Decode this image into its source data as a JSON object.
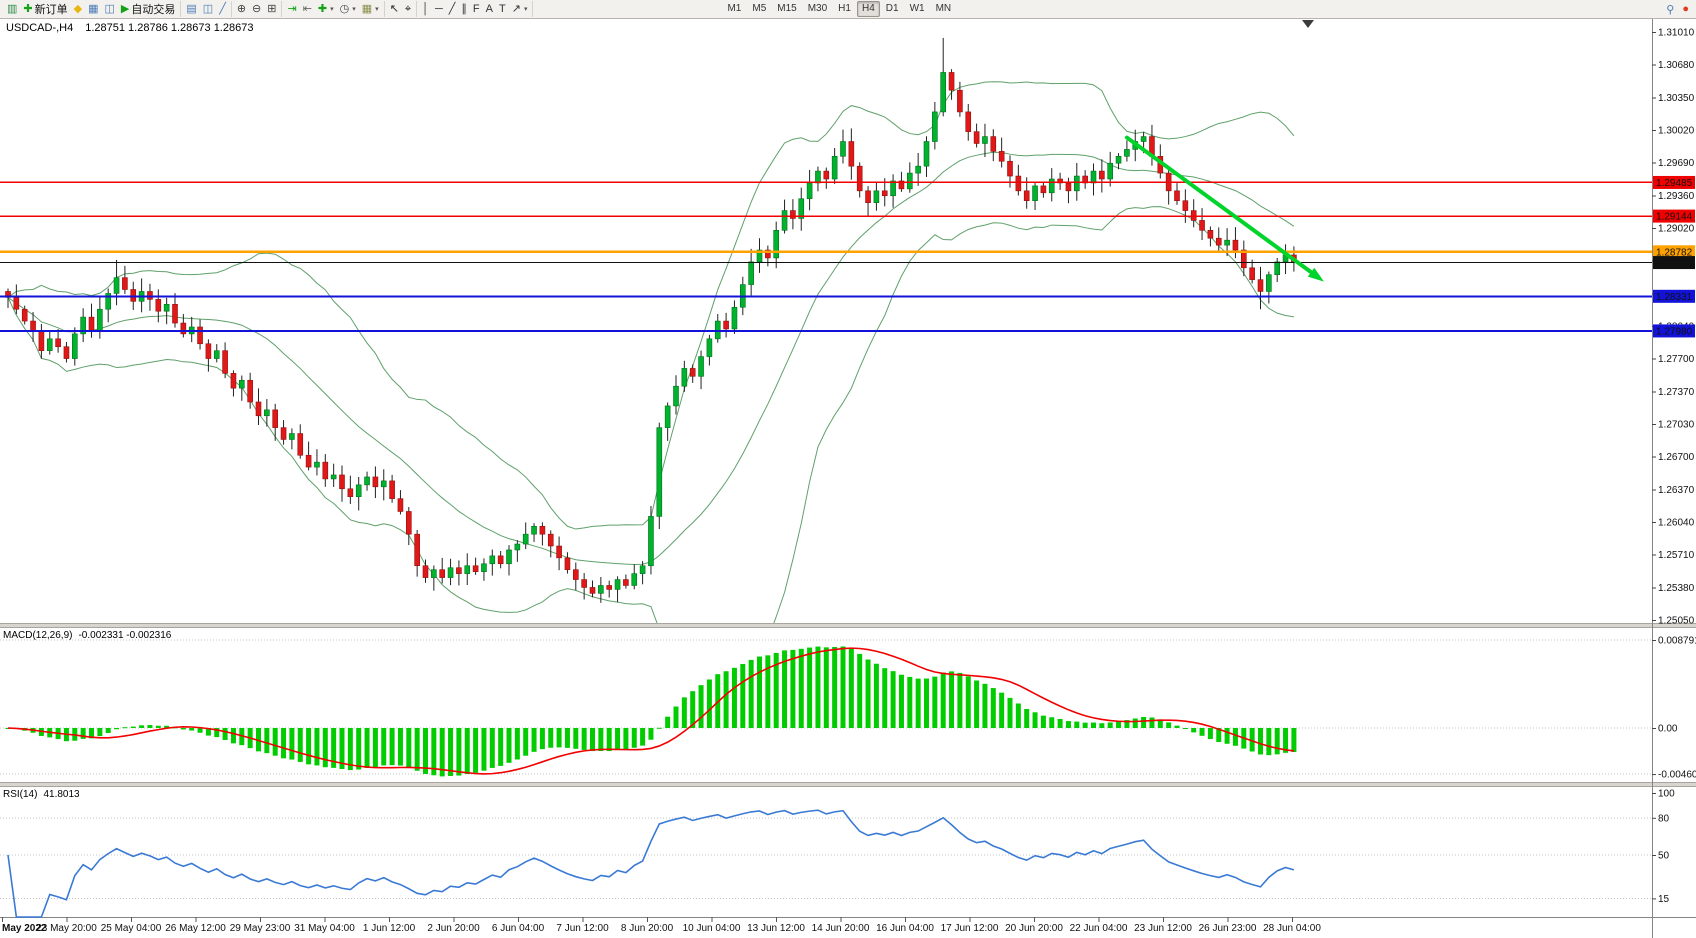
{
  "toolbar": {
    "groups": [
      {
        "name": "file-trade-group",
        "items": [
          {
            "name": "new-chart-icon",
            "glyph": "▥",
            "color": "#2e8b4a"
          },
          {
            "name": "new-order-button",
            "icon_name": "new-order-icon",
            "icon_glyph": "✚",
            "icon_color": "#16a316",
            "label": "新订单"
          },
          {
            "name": "metaeditor-icon",
            "glyph": "◆",
            "color": "#e8b60e"
          },
          {
            "name": "market-watch-icon",
            "glyph": "▦",
            "color": "#4a7ab5"
          },
          {
            "name": "navigator-icon",
            "glyph": "◫",
            "color": "#4a7ab5"
          },
          {
            "name": "auto-trading-button",
            "icon_name": "auto-trading-icon",
            "icon_glyph": "▶",
            "icon_color": "#12a312",
            "label": "自动交易"
          }
        ]
      },
      {
        "name": "chart-type-group",
        "items": [
          {
            "name": "bars-chart-icon",
            "glyph": "▤",
            "color": "#4a7ab5"
          },
          {
            "name": "candlestick-chart-icon",
            "glyph": "◫",
            "color": "#4a7ab5"
          },
          {
            "name": "line-chart-icon",
            "glyph": "╱",
            "color": "#4a7ab5"
          }
        ]
      },
      {
        "name": "zoom-group",
        "items": [
          {
            "name": "zoom-in-icon",
            "glyph": "⊕",
            "color": "#444444"
          },
          {
            "name": "zoom-out-icon",
            "glyph": "⊖",
            "color": "#444444"
          },
          {
            "name": "tile-windows-icon",
            "glyph": "⊞",
            "color": "#444444"
          }
        ]
      },
      {
        "name": "chart-tools-group",
        "items": [
          {
            "name": "auto-scroll-icon",
            "glyph": "⇥",
            "color": "#12a312"
          },
          {
            "name": "chart-shift-icon",
            "glyph": "⇤",
            "color": "#666666"
          },
          {
            "name": "indicators-icon",
            "glyph": "✚",
            "color": "#12a312",
            "caret": true
          },
          {
            "name": "periods-icon",
            "glyph": "◷",
            "color": "#444444",
            "caret": true
          },
          {
            "name": "templates-icon",
            "glyph": "▦",
            "color": "#8a8f4a",
            "caret": true
          }
        ]
      },
      {
        "name": "cursor-group",
        "items": [
          {
            "name": "cursor-icon",
            "glyph": "↖",
            "color": "#222222"
          },
          {
            "name": "crosshair-icon",
            "glyph": "⌖",
            "color": "#222222"
          }
        ]
      },
      {
        "name": "objects-group",
        "items": [
          {
            "name": "vertical-line-icon",
            "glyph": "│",
            "color": "#333333"
          },
          {
            "name": "horizontal-line-icon",
            "glyph": "─",
            "color": "#333333"
          },
          {
            "name": "trendline-icon",
            "glyph": "╱",
            "color": "#333333"
          },
          {
            "name": "channel-icon",
            "glyph": "∥",
            "color": "#333333"
          },
          {
            "name": "fibonacci-icon",
            "glyph": "F",
            "color": "#333333"
          },
          {
            "name": "text-icon",
            "glyph": "A",
            "color": "#333333"
          },
          {
            "name": "label-icon",
            "glyph": "T",
            "color": "#333333"
          },
          {
            "name": "arrows-icon",
            "glyph": "↗",
            "color": "#333333",
            "caret": true
          }
        ]
      }
    ],
    "timeframes": {
      "buttons": [
        "M1",
        "M5",
        "M15",
        "M30",
        "H1",
        "H4",
        "D1",
        "W1",
        "MN"
      ],
      "active": "H4"
    },
    "right_items": [
      {
        "name": "search-icon",
        "glyph": "⚲",
        "color": "#4a7ab5"
      },
      {
        "name": "alert-icon",
        "glyph": "●",
        "color": "#e03a1e"
      }
    ]
  },
  "chart": {
    "title": {
      "symbol_period": "USDCAD-,H4",
      "ohlc": "1.28751 1.28786 1.28673 1.28673"
    },
    "price_axis": {
      "labels": [
        "1.31010",
        "1.30680",
        "1.30350",
        "1.30020",
        "1.29690",
        "1.29360",
        "1.29020",
        "1.28700",
        "1.28370",
        "1.28040",
        "1.27700",
        "1.27370",
        "1.27030",
        "1.26700",
        "1.26370",
        "1.26040",
        "1.25710",
        "1.25380",
        "1.25050"
      ],
      "range": [
        1.2505,
        1.3101
      ]
    },
    "levels": [
      {
        "value": 1.29485,
        "label": "1.29485",
        "color": "#f00000",
        "weight": 1.5,
        "role": "resistance-line"
      },
      {
        "value": 1.29144,
        "label": "1.29144",
        "color": "#f00000",
        "weight": 1.5,
        "role": "resistance-line"
      },
      {
        "value": 1.28782,
        "label": "1.28782",
        "color": "#ffa200",
        "weight": 2.5,
        "role": "pivot-line"
      },
      {
        "value": 1.28673,
        "label": "1.28673",
        "color": "#111111",
        "weight": 1,
        "role": "current-price-line"
      },
      {
        "value": 1.28331,
        "label": "1.28331",
        "color": "#1212d8",
        "weight": 2,
        "role": "support-line"
      },
      {
        "value": 1.2798,
        "label": "1.27980",
        "color": "#1212d8",
        "weight": 2,
        "role": "support-line"
      }
    ],
    "objects": {
      "trend_arrow": {
        "from_index": 134,
        "from_price": 1.2994,
        "to_index": 157.6,
        "to_price": 1.2848,
        "color": "#00d42a"
      }
    },
    "macd": {
      "label": "MACD(12,26,9)",
      "values": "-0.002331 -0.002316",
      "scale_labels": [
        "0.008791",
        "0.00",
        "-0.004601"
      ]
    },
    "rsi": {
      "label": "RSI(14)",
      "value": "41.8013",
      "scale_labels": [
        "100",
        "80",
        "50",
        "15"
      ],
      "level_lines": [
        80,
        50,
        15
      ]
    },
    "time_axis": {
      "labels": [
        "May 2022",
        "23 May 20:00",
        "25 May 04:00",
        "26 May 12:00",
        "29 May 23:00",
        "31 May 04:00",
        "1 Jun 12:00",
        "2 Jun 20:00",
        "6 Jun 04:00",
        "7 Jun 12:00",
        "8 Jun 20:00",
        "10 Jun 04:00",
        "13 Jun 12:00",
        "14 Jun 20:00",
        "16 Jun 04:00",
        "17 Jun 12:00",
        "20 Jun 20:00",
        "22 Jun 04:00",
        "23 Jun 12:00",
        "26 Jun 23:00",
        "28 Jun 04:00"
      ]
    }
  },
  "chart_data": {
    "type": "candlestick",
    "symbol": "USDCAD-",
    "period": "H4",
    "last_ohlc": {
      "open": 1.28751,
      "high": 1.28786,
      "low": 1.28673,
      "close": 1.28673
    },
    "closes": [
      1.2832,
      1.282,
      1.2808,
      1.2798,
      1.2778,
      1.279,
      1.2782,
      1.277,
      1.2795,
      1.2812,
      1.2798,
      1.282,
      1.2836,
      1.2852,
      1.284,
      1.2828,
      1.2838,
      1.283,
      1.2818,
      1.2825,
      1.2806,
      1.2795,
      1.2802,
      1.2785,
      1.277,
      1.2778,
      1.2755,
      1.274,
      1.2748,
      1.2726,
      1.2712,
      1.2718,
      1.27,
      1.2688,
      1.2694,
      1.2672,
      1.266,
      1.2665,
      1.2648,
      1.2652,
      1.2638,
      1.263,
      1.2642,
      1.265,
      1.264,
      1.2646,
      1.2628,
      1.2615,
      1.2592,
      1.256,
      1.2548,
      1.2556,
      1.2548,
      1.2558,
      1.2552,
      1.256,
      1.2554,
      1.2562,
      1.257,
      1.2562,
      1.2576,
      1.2582,
      1.2592,
      1.26,
      1.2592,
      1.258,
      1.2568,
      1.2556,
      1.2546,
      1.2538,
      1.2532,
      1.254,
      1.2536,
      1.2546,
      1.254,
      1.2552,
      1.256,
      1.261,
      1.27,
      1.2722,
      1.2742,
      1.276,
      1.2752,
      1.2772,
      1.279,
      1.2808,
      1.28,
      1.2822,
      1.2845,
      1.2868,
      1.288,
      1.2872,
      1.29,
      1.292,
      1.2912,
      1.2932,
      1.2948,
      1.296,
      1.2952,
      1.2975,
      1.299,
      1.2965,
      1.294,
      1.2928,
      1.294,
      1.2935,
      1.295,
      1.2942,
      1.2958,
      1.2965,
      1.299,
      1.302,
      1.306,
      1.3042,
      1.302,
      1.3,
      1.2988,
      1.2995,
      1.298,
      1.297,
      1.2955,
      1.294,
      1.293,
      1.2945,
      1.2938,
      1.2952,
      1.2948,
      1.294,
      1.2955,
      1.2948,
      1.296,
      1.2952,
      1.2968,
      1.2975,
      1.2982,
      1.299,
      1.2995,
      1.2975,
      1.2958,
      1.294,
      1.293,
      1.292,
      1.291,
      1.29,
      1.2892,
      1.2885,
      1.289,
      1.288,
      1.2862,
      1.285,
      1.2838,
      1.2855,
      1.2868,
      1.2875,
      1.28673
    ],
    "spike_highs": {
      "13": 1.287,
      "100": 1.3002,
      "112": 1.3095,
      "117": 1.3008
    },
    "spike_lows": {
      "4": 1.277,
      "49": 1.2549,
      "70": 1.2528,
      "150": 1.282
    },
    "indicators": [
      {
        "name": "Bollinger Bands",
        "period": 20,
        "deviation": 2,
        "color": "#5fa06a"
      },
      {
        "name": "MACD",
        "fast_ema": 12,
        "slow_ema": 26,
        "signal_sma": 9,
        "current_values": [
          -0.002331,
          -0.002316
        ],
        "histogram_color": "#00cc00",
        "signal_color": "#f20000"
      },
      {
        "name": "RSI",
        "period": 14,
        "current_value": 41.8013,
        "color": "#3a7ad4"
      }
    ]
  }
}
